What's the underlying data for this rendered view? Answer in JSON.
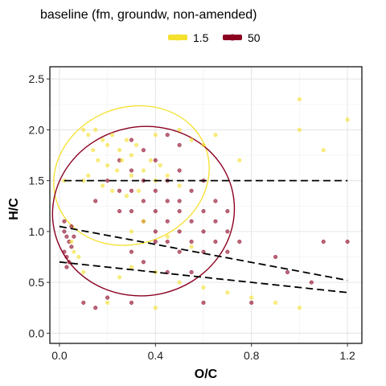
{
  "chart_data": {
    "type": "scatter",
    "title": "baseline (fm, groundw, non-amended)",
    "xlabel": "O/C",
    "ylabel": "H/C",
    "xlim": [
      -0.04,
      1.26
    ],
    "ylim": [
      -0.1,
      2.62
    ],
    "xticks": [
      0.0,
      0.4,
      0.8,
      1.2
    ],
    "xtick_labels": [
      "0.0",
      "0.4",
      "0.8",
      "1.2"
    ],
    "yticks": [
      0.0,
      0.5,
      1.0,
      1.5,
      2.0,
      2.5
    ],
    "ytick_labels": [
      "0.0",
      "0.5",
      "1.0",
      "1.5",
      "2.0",
      "2.5"
    ],
    "grid": true,
    "legend_position": "top",
    "series": [
      {
        "name": "1.5",
        "color": "#F5E02E",
        "ellipse": {
          "center": [
            0.3,
            1.55
          ],
          "rx": 0.33,
          "ry": 0.67,
          "angle_deg": 22
        },
        "points": [
          [
            0.1,
            2.0
          ],
          [
            0.12,
            1.95
          ],
          [
            0.15,
            2.0
          ],
          [
            0.18,
            1.9
          ],
          [
            0.2,
            1.85
          ],
          [
            0.22,
            1.95
          ],
          [
            0.25,
            1.8
          ],
          [
            0.28,
            1.9
          ],
          [
            0.3,
            1.75
          ],
          [
            0.32,
            1.85
          ],
          [
            0.14,
            1.8
          ],
          [
            0.16,
            1.7
          ],
          [
            0.2,
            1.65
          ],
          [
            0.24,
            1.6
          ],
          [
            0.26,
            1.7
          ],
          [
            0.3,
            1.55
          ],
          [
            0.35,
            1.6
          ],
          [
            0.38,
            1.7
          ],
          [
            0.4,
            1.5
          ],
          [
            0.42,
            1.65
          ],
          [
            0.45,
            1.55
          ],
          [
            0.5,
            1.45
          ],
          [
            0.12,
            1.55
          ],
          [
            0.1,
            1.5
          ],
          [
            0.18,
            1.45
          ],
          [
            0.22,
            1.4
          ],
          [
            0.28,
            1.35
          ],
          [
            0.33,
            1.4
          ],
          [
            0.06,
            0.8
          ],
          [
            0.08,
            0.75
          ],
          [
            0.05,
            0.9
          ],
          [
            0.1,
            0.6
          ],
          [
            0.25,
            0.55
          ],
          [
            0.3,
            0.65
          ],
          [
            0.4,
            0.6
          ],
          [
            0.5,
            0.5
          ],
          [
            0.6,
            0.45
          ],
          [
            0.7,
            0.4
          ],
          [
            0.8,
            0.35
          ],
          [
            1.0,
            2.3
          ],
          [
            1.0,
            2.0
          ],
          [
            1.2,
            2.1
          ],
          [
            1.1,
            1.8
          ],
          [
            0.65,
            1.95
          ],
          [
            0.75,
            1.7
          ],
          [
            0.02,
            1.5
          ],
          [
            0.4,
            1.95
          ],
          [
            0.5,
            2.0
          ],
          [
            0.55,
            1.9
          ],
          [
            0.6,
            1.85
          ],
          [
            0.3,
            1.0
          ],
          [
            0.35,
            1.1
          ],
          [
            0.45,
            0.95
          ],
          [
            0.55,
            0.85
          ],
          [
            0.2,
            0.3
          ],
          [
            0.4,
            0.25
          ],
          [
            0.9,
            0.3
          ],
          [
            1.0,
            0.25
          ]
        ]
      },
      {
        "name": "50",
        "color": "#8B0020",
        "ellipse": {
          "center": [
            0.35,
            1.2
          ],
          "rx": 0.38,
          "ry": 0.83,
          "angle_deg": 12
        },
        "points": [
          [
            0.3,
            1.6
          ],
          [
            0.35,
            1.5
          ],
          [
            0.4,
            1.4
          ],
          [
            0.45,
            1.3
          ],
          [
            0.5,
            1.2
          ],
          [
            0.55,
            1.1
          ],
          [
            0.6,
            1.0
          ],
          [
            0.65,
            0.9
          ],
          [
            0.7,
            0.8
          ],
          [
            0.3,
            1.4
          ],
          [
            0.35,
            1.3
          ],
          [
            0.4,
            1.2
          ],
          [
            0.45,
            1.1
          ],
          [
            0.5,
            1.0
          ],
          [
            0.55,
            0.9
          ],
          [
            0.6,
            0.8
          ],
          [
            0.3,
            1.2
          ],
          [
            0.35,
            1.1
          ],
          [
            0.4,
            1.0
          ],
          [
            0.45,
            0.9
          ],
          [
            0.5,
            0.8
          ],
          [
            0.3,
            0.8
          ],
          [
            0.4,
            0.9
          ],
          [
            0.5,
            1.3
          ],
          [
            0.55,
            1.4
          ],
          [
            0.6,
            1.5
          ],
          [
            0.65,
            1.3
          ],
          [
            0.7,
            1.2
          ],
          [
            0.45,
            1.5
          ],
          [
            0.5,
            1.6
          ],
          [
            0.4,
            1.7
          ],
          [
            0.35,
            1.8
          ],
          [
            0.3,
            1.9
          ],
          [
            0.25,
            1.7
          ],
          [
            0.2,
            1.5
          ],
          [
            0.25,
            1.4
          ],
          [
            0.6,
            1.2
          ],
          [
            0.65,
            1.1
          ],
          [
            0.7,
            1.0
          ],
          [
            0.75,
            0.9
          ],
          [
            0.35,
            0.7
          ],
          [
            0.45,
            0.6
          ],
          [
            0.55,
            0.6
          ],
          [
            0.02,
            1.0
          ],
          [
            0.03,
            0.95
          ],
          [
            0.04,
            0.9
          ],
          [
            0.05,
            0.85
          ],
          [
            0.02,
            0.8
          ],
          [
            0.03,
            0.75
          ],
          [
            0.04,
            0.7
          ],
          [
            0.05,
            1.05
          ],
          [
            0.06,
            0.95
          ],
          [
            0.02,
            1.1
          ],
          [
            0.03,
            0.65
          ],
          [
            0.1,
            0.3
          ],
          [
            0.15,
            0.25
          ],
          [
            0.2,
            0.35
          ],
          [
            0.3,
            0.3
          ],
          [
            0.6,
            0.3
          ],
          [
            0.8,
            0.3
          ],
          [
            0.95,
            0.6
          ],
          [
            1.1,
            0.9
          ],
          [
            1.2,
            0.9
          ],
          [
            0.9,
            0.75
          ],
          [
            1.05,
            0.5
          ],
          [
            0.45,
            1.95
          ],
          [
            0.5,
            1.85
          ],
          [
            0.25,
            1.2
          ],
          [
            0.15,
            1.3
          ]
        ]
      }
    ],
    "reference_lines": [
      {
        "style": "dashed",
        "points": [
          [
            0.02,
            1.5
          ],
          [
            1.2,
            1.5
          ]
        ]
      },
      {
        "style": "dashed",
        "points": [
          [
            0.0,
            1.05
          ],
          [
            1.2,
            0.52
          ]
        ]
      },
      {
        "style": "dashed",
        "points": [
          [
            0.0,
            0.7
          ],
          [
            1.2,
            0.4
          ]
        ]
      }
    ]
  }
}
